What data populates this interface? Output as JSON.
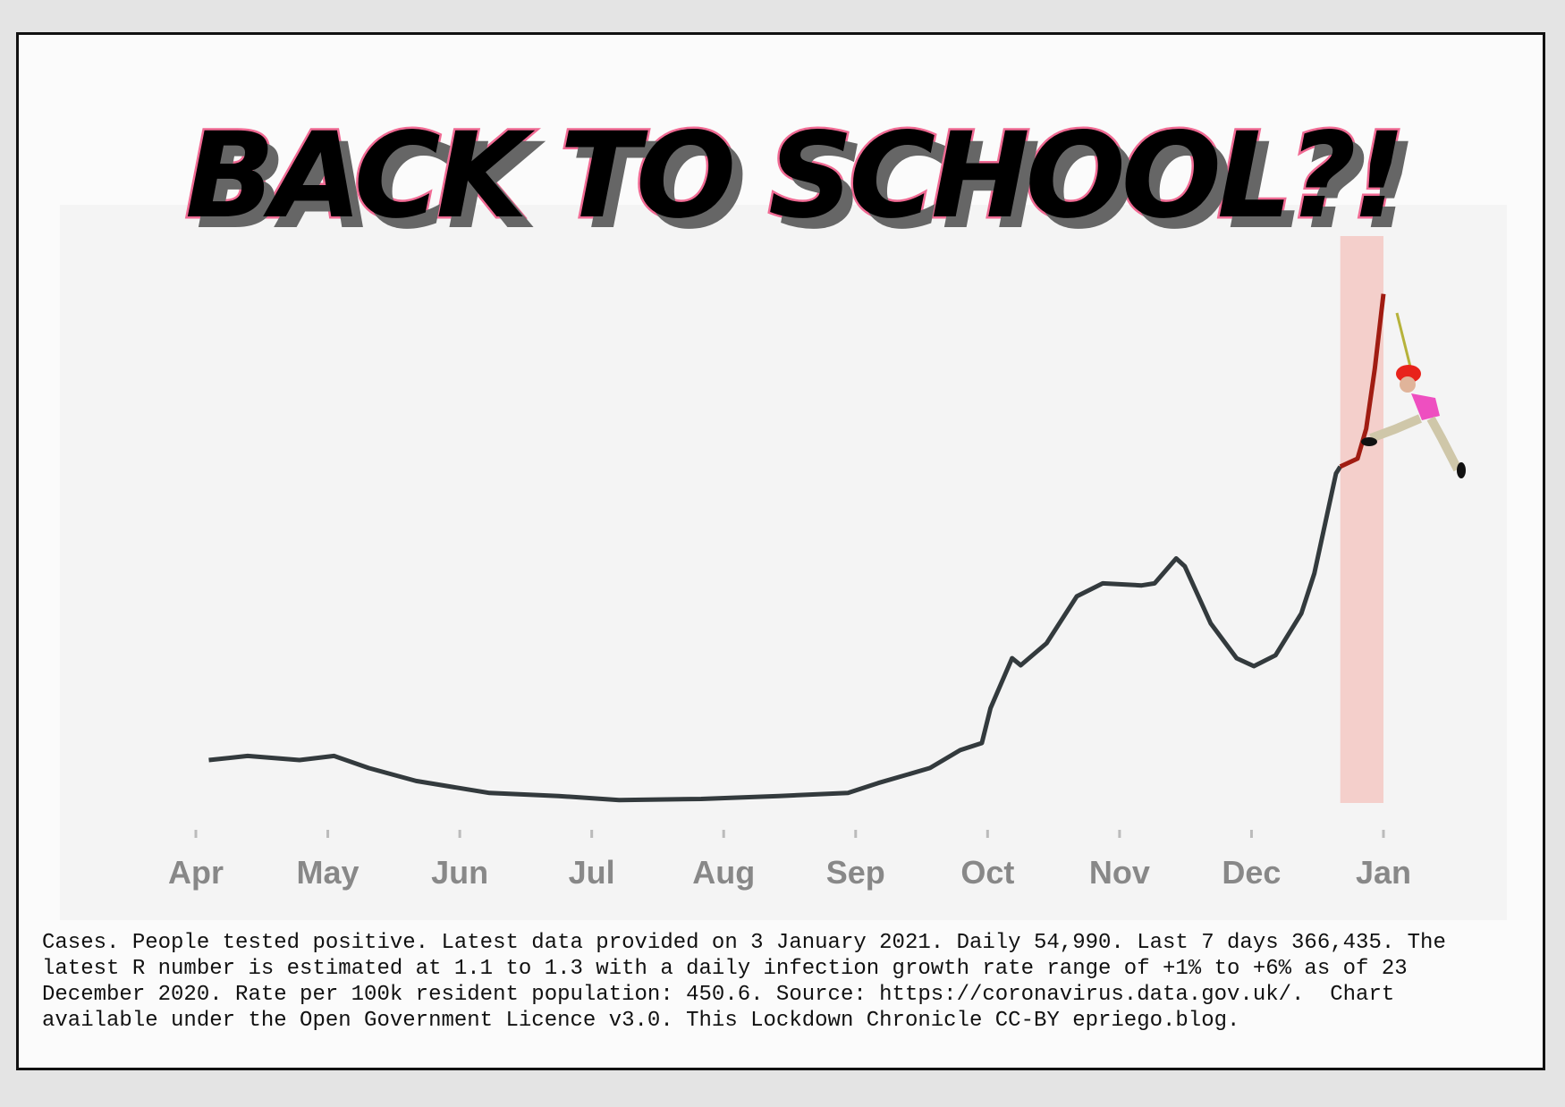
{
  "title": "BACK TO SCHOOL?!",
  "caption": [
    "Cases. People tested positive. Latest data provided on 3 January 2021. Daily 54,990. Last 7 days 366,435. The",
    "latest R number is estimated at 1.1 to 1.3 with a daily infection growth rate range of +1% to +6% as of 23",
    "December 2020. Rate per 100k resident population: 450.6. Source: https://coronavirus.data.gov.uk/.  Chart",
    "available under the Open Government Licence v3.0. This Lockdown Chronicle CC-BY epriego.blog."
  ],
  "chart_data": {
    "type": "line",
    "title": "",
    "xlabel": "",
    "ylabel": "",
    "x_tick_labels": [
      "Apr",
      "May",
      "Jun",
      "Jul",
      "Aug",
      "Sep",
      "Oct",
      "Nov",
      "Dec",
      "Jan"
    ],
    "xlim": [
      "2020-04-01",
      "2021-01-01"
    ],
    "ylim": [
      0,
      60000
    ],
    "y_axis_labels_shown": false,
    "grid": false,
    "highlight_range": [
      "2020-12-22",
      "2021-01-01"
    ],
    "colors": {
      "line": "#333a3d",
      "recent_line": "#a01c12",
      "highlight": "#f4cfcb"
    },
    "series": [
      {
        "x": [
          "2020-04-04",
          "2020-04-13",
          "2020-04-25",
          "2020-05-03",
          "2020-05-11",
          "2020-05-22",
          "2020-06-08",
          "2020-06-24",
          "2020-07-08",
          "2020-07-27",
          "2020-08-14",
          "2020-08-30",
          "2020-09-06",
          "2020-09-18",
          "2020-09-25",
          "2020-09-30",
          "2020-10-02",
          "2020-10-07",
          "2020-10-09",
          "2020-10-15",
          "2020-10-22",
          "2020-10-28",
          "2020-11-06",
          "2020-11-09",
          "2020-11-14",
          "2020-11-16",
          "2020-11-22",
          "2020-11-28",
          "2020-12-02",
          "2020-12-07",
          "2020-12-13",
          "2020-12-16",
          "2020-12-21",
          "2020-12-22",
          "2020-12-26",
          "2020-12-28",
          "2020-12-30",
          "2021-01-01"
        ],
        "y": [
          4470,
          4900,
          4470,
          4900,
          3640,
          2290,
          1040,
          730,
          310,
          420,
          730,
          1040,
          2080,
          3640,
          5510,
          6240,
          9880,
          15080,
          14350,
          16640,
          21530,
          22880,
          22670,
          22880,
          25480,
          24650,
          18720,
          15080,
          14250,
          15390,
          19760,
          23920,
          34320,
          35050,
          35880,
          39000,
          45240,
          53040
        ]
      }
    ]
  }
}
